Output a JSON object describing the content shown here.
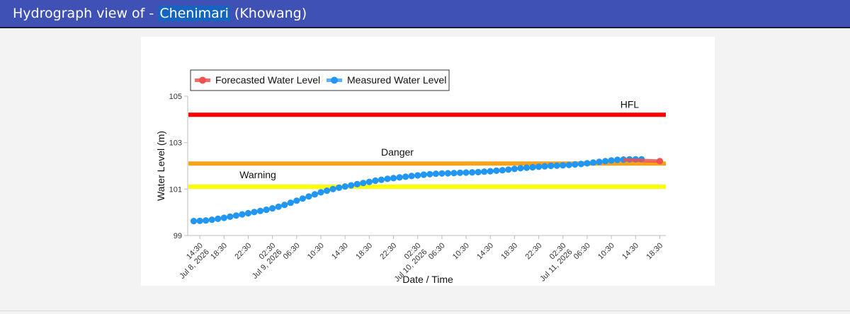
{
  "header": {
    "prefix": "Hydrograph view of - ",
    "station": "Chenimari",
    "suffix": " (Khowang)"
  },
  "colors": {
    "header_bg": "#3f51b5",
    "hfl": "#ff0000",
    "danger": "#f7a21b",
    "warning": "#ffff00",
    "measured": "#2196f3",
    "forecast": "#f0504f"
  },
  "chart_data": {
    "type": "line",
    "xlabel": "Date / Time",
    "ylabel": "Water Level (m)",
    "ylim": [
      99,
      105
    ],
    "yticks": [
      "99",
      "101",
      "103",
      "105"
    ],
    "xlim": [
      "2026-07-08 12:30",
      "2026-07-11 19:30"
    ],
    "xticks": [
      {
        "t": "2026-07-08 14:30",
        "label": "14:30",
        "date": "Jul 8, 2026"
      },
      {
        "t": "2026-07-08 18:30",
        "label": "18:30"
      },
      {
        "t": "2026-07-08 22:30",
        "label": "22:30"
      },
      {
        "t": "2026-07-09 02:30",
        "label": "02:30",
        "date": "Jul 9, 2026"
      },
      {
        "t": "2026-07-09 06:30",
        "label": "06:30"
      },
      {
        "t": "2026-07-09 10:30",
        "label": "10:30"
      },
      {
        "t": "2026-07-09 14:30",
        "label": "14:30"
      },
      {
        "t": "2026-07-09 18:30",
        "label": "18:30"
      },
      {
        "t": "2026-07-09 22:30",
        "label": "22:30"
      },
      {
        "t": "2026-07-10 02:30",
        "label": "02:30",
        "date": "Jul 10, 2026"
      },
      {
        "t": "2026-07-10 06:30",
        "label": "06:30"
      },
      {
        "t": "2026-07-10 10:30",
        "label": "10:30"
      },
      {
        "t": "2026-07-10 14:30",
        "label": "14:30"
      },
      {
        "t": "2026-07-10 18:30",
        "label": "18:30"
      },
      {
        "t": "2026-07-10 22:30",
        "label": "22:30"
      },
      {
        "t": "2026-07-11 02:30",
        "label": "02:30",
        "date": "Jul 11, 2026"
      },
      {
        "t": "2026-07-11 06:30",
        "label": "06:30"
      },
      {
        "t": "2026-07-11 10:30",
        "label": "10:30"
      },
      {
        "t": "2026-07-11 14:30",
        "label": "14:30"
      },
      {
        "t": "2026-07-11 18:30",
        "label": "18:30"
      }
    ],
    "thresholds": [
      {
        "name": "HFL",
        "value": 104.2,
        "color": "#ff0000"
      },
      {
        "name": "Danger",
        "value": 102.1,
        "color": "#f7a21b"
      },
      {
        "name": "Warning",
        "value": 101.1,
        "color": "#ffff00"
      }
    ],
    "legend": {
      "placement": "top-left",
      "entries": [
        "Forecasted Water Level",
        "Measured Water Level"
      ]
    },
    "series": [
      {
        "name": "Measured Water Level",
        "start": "2026-07-08 13:30",
        "step_hours": 1,
        "values": [
          99.62,
          99.63,
          99.65,
          99.68,
          99.72,
          99.76,
          99.81,
          99.86,
          99.91,
          99.96,
          100.01,
          100.06,
          100.11,
          100.17,
          100.24,
          100.32,
          100.41,
          100.5,
          100.59,
          100.68,
          100.77,
          100.86,
          100.93,
          101.0,
          101.06,
          101.11,
          101.16,
          101.21,
          101.26,
          101.31,
          101.36,
          101.4,
          101.44,
          101.47,
          101.5,
          101.53,
          101.56,
          101.59,
          101.62,
          101.64,
          101.66,
          101.67,
          101.68,
          101.69,
          101.7,
          101.71,
          101.72,
          101.73,
          101.75,
          101.77,
          101.79,
          101.81,
          101.84,
          101.87,
          101.9,
          101.92,
          101.94,
          101.96,
          101.98,
          102.0,
          102.01,
          102.02,
          102.04,
          102.06,
          102.08,
          102.11,
          102.14,
          102.17,
          102.2,
          102.23,
          102.26,
          102.27,
          102.28,
          102.28,
          102.28
        ]
      },
      {
        "name": "Forecasted Water Level",
        "start": "2026-07-11 12:30",
        "step_hours": 6,
        "values": [
          102.26,
          102.2
        ]
      }
    ]
  }
}
